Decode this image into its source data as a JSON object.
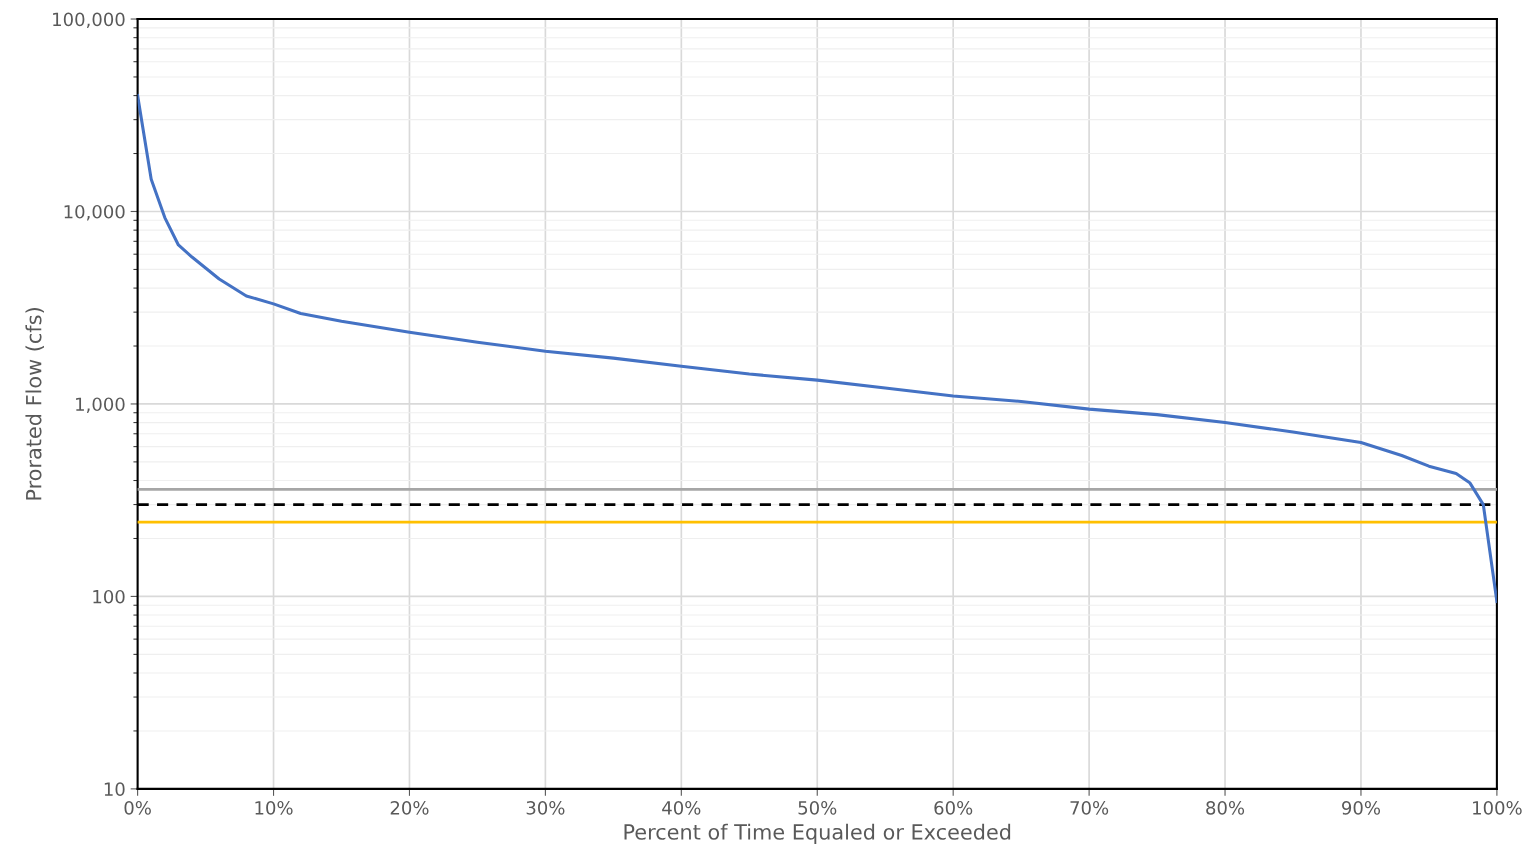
{
  "chart_data": {
    "type": "line",
    "xlabel": "Percent of Time Equaled or Exceeded",
    "ylabel": "Prorated Flow (cfs)",
    "x": [
      0,
      1,
      2,
      3,
      4,
      6,
      8,
      10,
      12,
      15,
      20,
      25,
      30,
      35,
      40,
      45,
      50,
      55,
      60,
      65,
      70,
      75,
      80,
      85,
      90,
      93,
      95,
      97,
      98,
      99,
      100
    ],
    "series": [
      {
        "color": "#4472c4",
        "values": [
          40000,
          14700,
          9300,
          6700,
          5800,
          4460,
          3640,
          3310,
          2950,
          2690,
          2360,
          2090,
          1880,
          1730,
          1570,
          1430,
          1330,
          1210,
          1100,
          1030,
          940,
          880,
          800,
          715,
          630,
          540,
          475,
          435,
          390,
          300,
          94
        ]
      }
    ],
    "log": "y",
    "xlim": [
      0,
      100
    ],
    "ylim": [
      10,
      100000
    ],
    "xticks": [
      {
        "value": 0,
        "label": "0%"
      },
      {
        "value": 10,
        "label": "10%"
      },
      {
        "value": 20,
        "label": "20%"
      },
      {
        "value": 30,
        "label": "30%"
      },
      {
        "value": 40,
        "label": "40%"
      },
      {
        "value": 50,
        "label": "50%"
      },
      {
        "value": 60,
        "label": "60%"
      },
      {
        "value": 70,
        "label": "70%"
      },
      {
        "value": 80,
        "label": "80%"
      },
      {
        "value": 90,
        "label": "90%"
      },
      {
        "value": 100,
        "label": "100%"
      }
    ],
    "yticks": [
      10,
      100,
      {
        "value": 1000,
        "label": "1,000"
      },
      {
        "value": 10000,
        "label": "10,000"
      },
      {
        "value": 100000,
        "label": "100,000"
      }
    ],
    "ref_lines": [
      {
        "axis": "y",
        "value": 360,
        "color": "#a6a6a6",
        "line_style": "solid"
      },
      {
        "axis": "y",
        "value": 300,
        "color": "#000000",
        "line_style": "dashed"
      },
      {
        "axis": "y",
        "value": 243,
        "color": "#ffc000",
        "line_style": "solid"
      }
    ],
    "grid": true,
    "marker": "none",
    "line_style": "solid",
    "legend": false
  }
}
